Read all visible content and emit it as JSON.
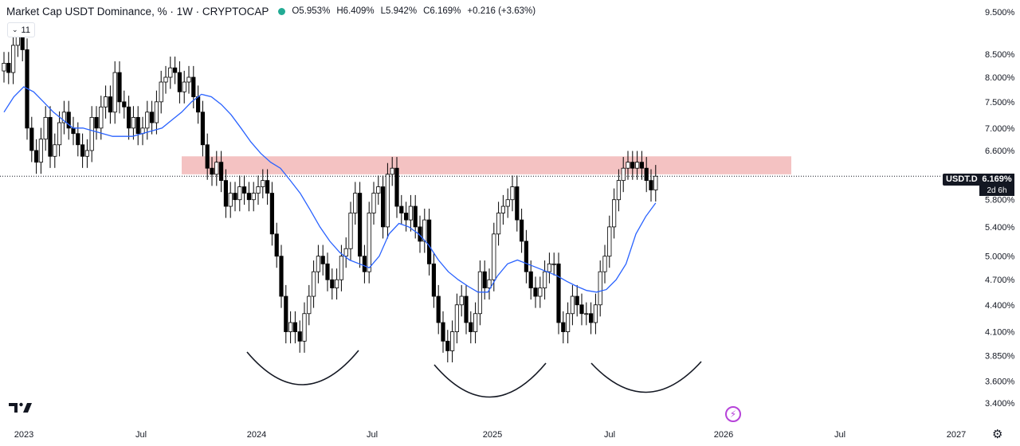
{
  "header": {
    "title": "Market Cap USDT Dominance, % · 1W · CRYPTOCAP",
    "ohlc": {
      "o_label": "O",
      "o": "5.953%",
      "h_label": "H",
      "h": "6.409%",
      "l_label": "L",
      "l": "5.942%",
      "c_label": "C",
      "c": "6.169%",
      "change": "+0.216 (+3.63%)"
    },
    "indicator_count": "11",
    "accent_green": "#22ab94"
  },
  "price_tag": {
    "symbol": "USDT.D",
    "value": "6.169%",
    "countdown": "2d 6h"
  },
  "icons": [
    "chevron-down-icon",
    "tradingview-logo-icon",
    "bolt-icon",
    "settings-icon"
  ],
  "chart_data": {
    "type": "candlestick",
    "interval": "1W",
    "y_scale": "log",
    "ylim": [
      3.2,
      9.8
    ],
    "x_start": "2023-01",
    "x_end": "2027-01",
    "yticks": [
      "9.500%",
      "8.500%",
      "8.000%",
      "7.500%",
      "7.000%",
      "6.600%",
      "6.169%",
      "5.800%",
      "5.400%",
      "5.000%",
      "4.700%",
      "4.400%",
      "4.100%",
      "3.850%",
      "3.600%",
      "3.400%"
    ],
    "xticks": [
      "2023",
      "Jul",
      "2024",
      "Jul",
      "2025",
      "Jul",
      "2026",
      "Jul",
      "2027"
    ],
    "colors": {
      "up": "#ffffff",
      "down": "#000000",
      "wick": "#000000",
      "ma": "#2962ff",
      "zone": "#f4c2c2"
    },
    "resistance_zone": [
      6.2,
      6.5
    ],
    "last_price": 6.169,
    "close": [
      8.3,
      8.1,
      8.7,
      8.9,
      8.6,
      7.0,
      6.6,
      6.4,
      6.8,
      7.2,
      6.5,
      6.7,
      7.1,
      7.3,
      7.0,
      6.9,
      6.7,
      6.5,
      6.6,
      7.2,
      7.0,
      7.4,
      7.6,
      7.3,
      8.1,
      7.5,
      7.4,
      7.0,
      7.2,
      6.9,
      7.0,
      7.3,
      7.1,
      7.5,
      7.9,
      8.0,
      8.2,
      8.1,
      7.7,
      7.9,
      8.0,
      7.6,
      7.3,
      6.7,
      6.3,
      6.2,
      6.4,
      6.1,
      5.7,
      5.9,
      5.8,
      6.0,
      5.9,
      5.8,
      5.9,
      6.0,
      6.1,
      5.9,
      5.3,
      5.0,
      4.5,
      4.1,
      4.2,
      4.1,
      4.0,
      4.3,
      4.5,
      4.8,
      5.0,
      4.9,
      4.7,
      4.6,
      4.7,
      5.0,
      5.1,
      5.6,
      5.9,
      5.0,
      4.8,
      5.6,
      5.9,
      6.0,
      5.4,
      6.2,
      6.3,
      5.7,
      5.6,
      5.5,
      5.7,
      5.4,
      5.2,
      5.5,
      4.9,
      4.5,
      4.2,
      4.0,
      3.9,
      4.1,
      4.4,
      4.5,
      4.2,
      4.1,
      4.3,
      4.8,
      4.6,
      4.7,
      5.3,
      5.6,
      5.7,
      5.8,
      6.0,
      5.5,
      5.2,
      4.8,
      4.6,
      4.5,
      4.6,
      4.8,
      4.9,
      4.9,
      4.2,
      4.1,
      4.3,
      4.5,
      4.4,
      4.3,
      4.3,
      4.2,
      4.4,
      4.8,
      5.0,
      5.4,
      5.8,
      6.1,
      6.3,
      6.4,
      6.3,
      6.4,
      6.3,
      6.1,
      5.95,
      6.169
    ],
    "ma": [
      7.3,
      7.6,
      7.8,
      7.7,
      7.5,
      7.3,
      7.15,
      7.0,
      7.0,
      6.95,
      6.9,
      6.85,
      6.85,
      6.85,
      6.9,
      6.95,
      7.0,
      7.15,
      7.3,
      7.5,
      7.65,
      7.6,
      7.45,
      7.25,
      7.0,
      6.75,
      6.55,
      6.4,
      6.3,
      6.1,
      5.9,
      5.65,
      5.4,
      5.2,
      5.05,
      4.95,
      4.9,
      4.85,
      5.0,
      5.3,
      5.45,
      5.4,
      5.3,
      5.15,
      4.95,
      4.8,
      4.7,
      4.62,
      4.55,
      4.55,
      4.75,
      4.9,
      4.95,
      4.9,
      4.85,
      4.8,
      4.75,
      4.68,
      4.62,
      4.57,
      4.55,
      4.58,
      4.7,
      4.9,
      5.3,
      5.55,
      5.75
    ],
    "ma_start_index": 0,
    "annotations": [
      "arc",
      "arc",
      "arc"
    ]
  }
}
